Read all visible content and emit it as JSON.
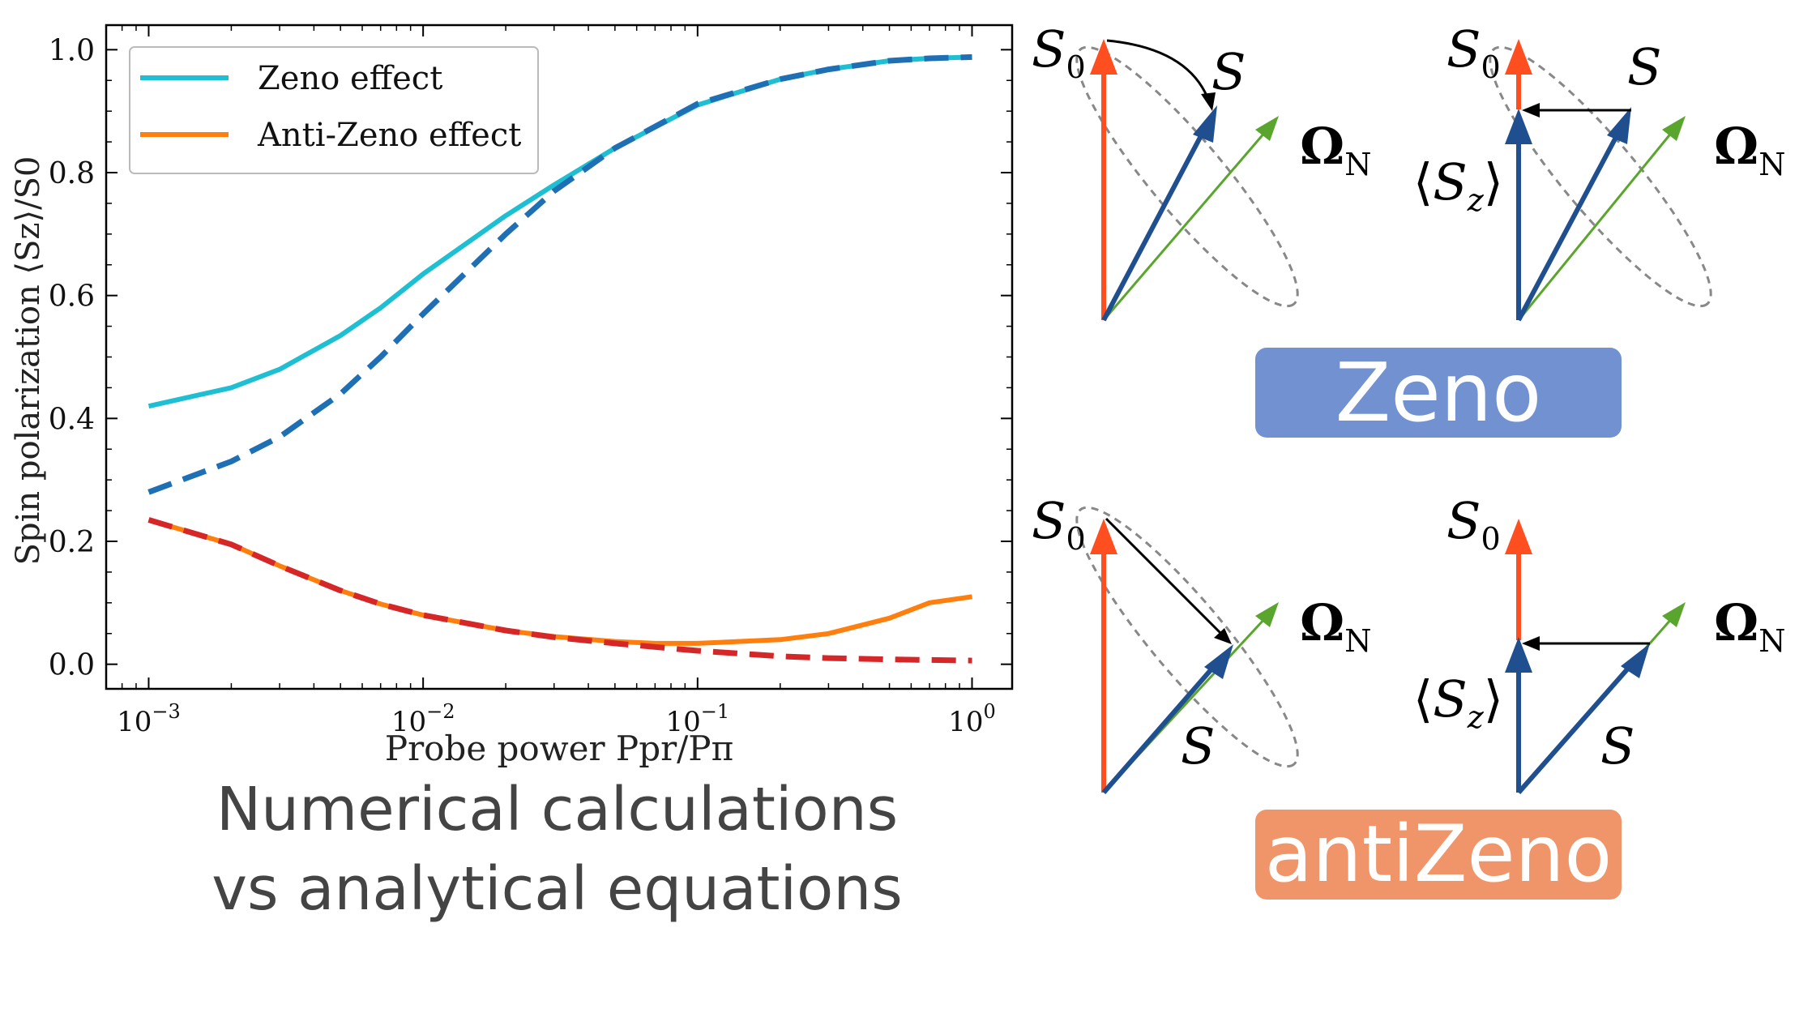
{
  "chart_data": {
    "type": "line",
    "xscale": "log",
    "xlim": [
      0.0007,
      1.4
    ],
    "ylim": [
      -0.04,
      1.04
    ],
    "xticks": [
      {
        "value": 0.001,
        "base": "10",
        "exp": "−3"
      },
      {
        "value": 0.01,
        "base": "10",
        "exp": "−2"
      },
      {
        "value": 0.1,
        "base": "10",
        "exp": "−1"
      },
      {
        "value": 1,
        "base": "10",
        "exp": "0"
      }
    ],
    "yticks": [
      {
        "value": 0.0,
        "label": "0.0"
      },
      {
        "value": 0.2,
        "label": "0.2"
      },
      {
        "value": 0.4,
        "label": "0.4"
      },
      {
        "value": 0.6,
        "label": "0.6"
      },
      {
        "value": 0.8,
        "label": "0.8"
      },
      {
        "value": 1.0,
        "label": "1.0"
      }
    ],
    "xlabel": "Probe power Ppr/Pπ",
    "ylabel": "Spin polarization ⟨Sz⟩/S0",
    "legend": {
      "position": "top-left",
      "entries": [
        "Zeno effect",
        "Anti-Zeno effect"
      ]
    },
    "series": [
      {
        "name": "Zeno effect",
        "style": "solid",
        "color": "#1ebfd2",
        "x": [
          0.001,
          0.002,
          0.003,
          0.005,
          0.007,
          0.01,
          0.02,
          0.03,
          0.05,
          0.1,
          0.2,
          0.3,
          0.5,
          0.7,
          1.0
        ],
        "y": [
          0.42,
          0.45,
          0.48,
          0.535,
          0.58,
          0.635,
          0.73,
          0.78,
          0.84,
          0.91,
          0.952,
          0.968,
          0.982,
          0.986,
          0.988
        ]
      },
      {
        "name": "Anti-Zeno effect",
        "style": "solid",
        "color": "#ff7f0e",
        "x": [
          0.001,
          0.002,
          0.003,
          0.005,
          0.007,
          0.01,
          0.02,
          0.03,
          0.05,
          0.07,
          0.1,
          0.2,
          0.3,
          0.5,
          0.7,
          1.0
        ],
        "y": [
          0.235,
          0.195,
          0.16,
          0.12,
          0.098,
          0.08,
          0.055,
          0.045,
          0.037,
          0.034,
          0.034,
          0.04,
          0.05,
          0.075,
          0.1,
          0.11
        ]
      },
      {
        "style": "dashed",
        "color": "#1f6fb4",
        "x": [
          0.001,
          0.002,
          0.003,
          0.005,
          0.007,
          0.01,
          0.02,
          0.03,
          0.05,
          0.1,
          0.2,
          0.3,
          0.5,
          0.7,
          1.0
        ],
        "y": [
          0.28,
          0.33,
          0.37,
          0.44,
          0.5,
          0.57,
          0.7,
          0.77,
          0.84,
          0.912,
          0.952,
          0.968,
          0.982,
          0.986,
          0.988
        ]
      },
      {
        "style": "dashed",
        "color": "#d62728",
        "x": [
          0.001,
          0.002,
          0.003,
          0.005,
          0.007,
          0.01,
          0.02,
          0.03,
          0.05,
          0.1,
          0.2,
          0.3,
          0.5,
          0.7,
          1.0
        ],
        "y": [
          0.235,
          0.195,
          0.16,
          0.12,
          0.098,
          0.08,
          0.055,
          0.044,
          0.034,
          0.022,
          0.013,
          0.01,
          0.008,
          0.007,
          0.006
        ]
      }
    ]
  },
  "caption": {
    "line1": "Numerical calculations",
    "line2": "vs analytical equations"
  },
  "badges": {
    "zeno": "Zeno",
    "antizeno": "antiZeno",
    "zeno_color": "#7291d1",
    "antizeno_color": "#f0956a"
  },
  "diagrams": {
    "s0": "S",
    "s0_sub": "0",
    "s": "S",
    "omega": "Ω",
    "omega_sub": "N",
    "sz_left": "⟨",
    "sz_var": "S",
    "sz_sub": "z",
    "sz_right": "⟩",
    "colors": {
      "s0": "#ff4e1f",
      "s": "#1f4f8f",
      "omega": "#5aa52e",
      "projection": "#000000",
      "cone": "#888888"
    }
  }
}
